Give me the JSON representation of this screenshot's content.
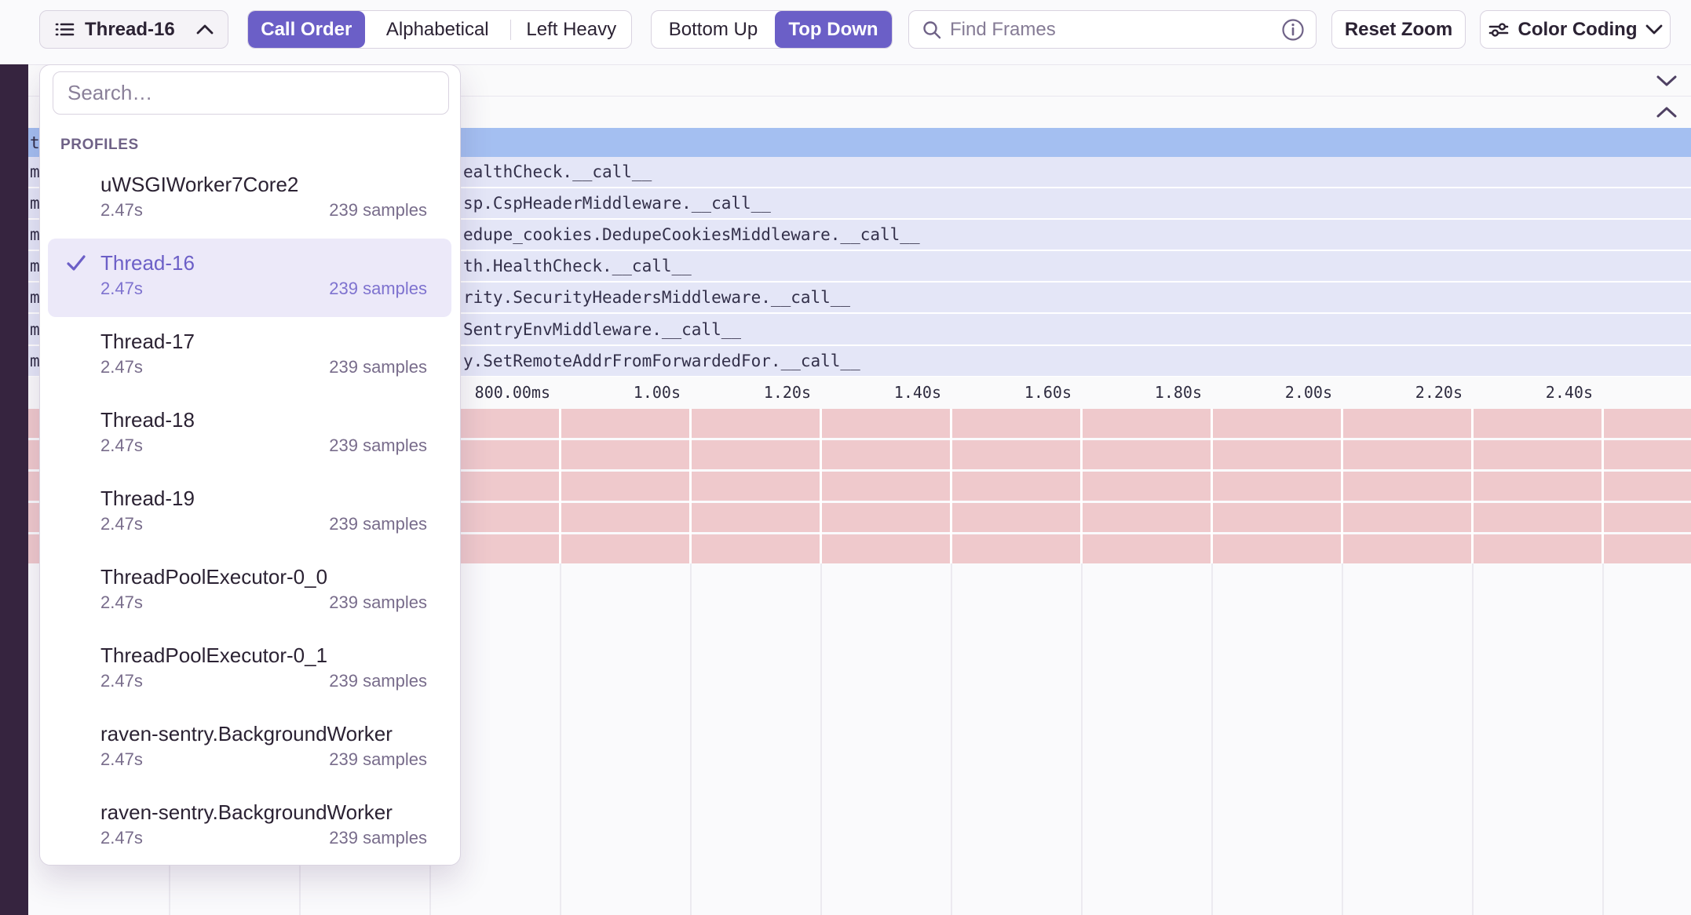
{
  "colors": {
    "accent": "#6B5FC7",
    "sidebar": "#36243F",
    "root_row": "#A4BFF1",
    "frame_row": "#E4E6F7",
    "sample_row": "#EFC9CC"
  },
  "toolbar": {
    "thread_selector_label": "Thread-16",
    "order_tabs": {
      "call_order": "Call Order",
      "alphabetical": "Alphabetical",
      "left_heavy": "Left Heavy",
      "selected": "Call Order"
    },
    "direction_tabs": {
      "bottom_up": "Bottom Up",
      "top_down": "Top Down",
      "selected": "Top Down"
    },
    "find_frames_placeholder": "Find Frames",
    "reset_zoom_label": "Reset Zoom",
    "color_coding_label": "Color Coding"
  },
  "dropdown": {
    "search_placeholder": "Search…",
    "section_label": "PROFILES",
    "items": [
      {
        "name": "uWSGIWorker7Core2",
        "duration": "2.47s",
        "samples": "239 samples",
        "selected": false
      },
      {
        "name": "Thread-16",
        "duration": "2.47s",
        "samples": "239 samples",
        "selected": true
      },
      {
        "name": "Thread-17",
        "duration": "2.47s",
        "samples": "239 samples",
        "selected": false
      },
      {
        "name": "Thread-18",
        "duration": "2.47s",
        "samples": "239 samples",
        "selected": false
      },
      {
        "name": "Thread-19",
        "duration": "2.47s",
        "samples": "239 samples",
        "selected": false
      },
      {
        "name": "ThreadPoolExecutor-0_0",
        "duration": "2.47s",
        "samples": "239 samples",
        "selected": false
      },
      {
        "name": "ThreadPoolExecutor-0_1",
        "duration": "2.47s",
        "samples": "239 samples",
        "selected": false
      },
      {
        "name": "raven-sentry.BackgroundWorker",
        "duration": "2.47s",
        "samples": "239 samples",
        "selected": false
      },
      {
        "name": "raven-sentry.BackgroundWorker",
        "duration": "2.47s",
        "samples": "239 samples",
        "selected": false
      }
    ]
  },
  "flamegraph": {
    "root_row_edge_char": "t",
    "frame_rows": [
      {
        "char": "m",
        "label": "ealthCheck.__call__"
      },
      {
        "char": "m",
        "label": "sp.CspHeaderMiddleware.__call__"
      },
      {
        "char": "m",
        "label": "edupe_cookies.DedupeCookiesMiddleware.__call__"
      },
      {
        "char": "m",
        "label": "th.HealthCheck.__call__"
      },
      {
        "char": "m",
        "label": "rity.SecurityHeadersMiddleware.__call__"
      },
      {
        "char": "m",
        "label": "SentryEnvMiddleware.__call__"
      },
      {
        "char": "m",
        "label": "y.SetRemoteAddrFromForwardedFor.__call__"
      }
    ],
    "axis_ticks": [
      {
        "label": "800.00ms"
      },
      {
        "label": "1.00s"
      },
      {
        "label": "1.20s"
      },
      {
        "label": "1.40s"
      },
      {
        "label": "1.60s"
      },
      {
        "label": "1.80s"
      },
      {
        "label": "2.00s"
      },
      {
        "label": "2.20s"
      },
      {
        "label": "2.40s"
      }
    ],
    "sample_row_count": 5
  }
}
